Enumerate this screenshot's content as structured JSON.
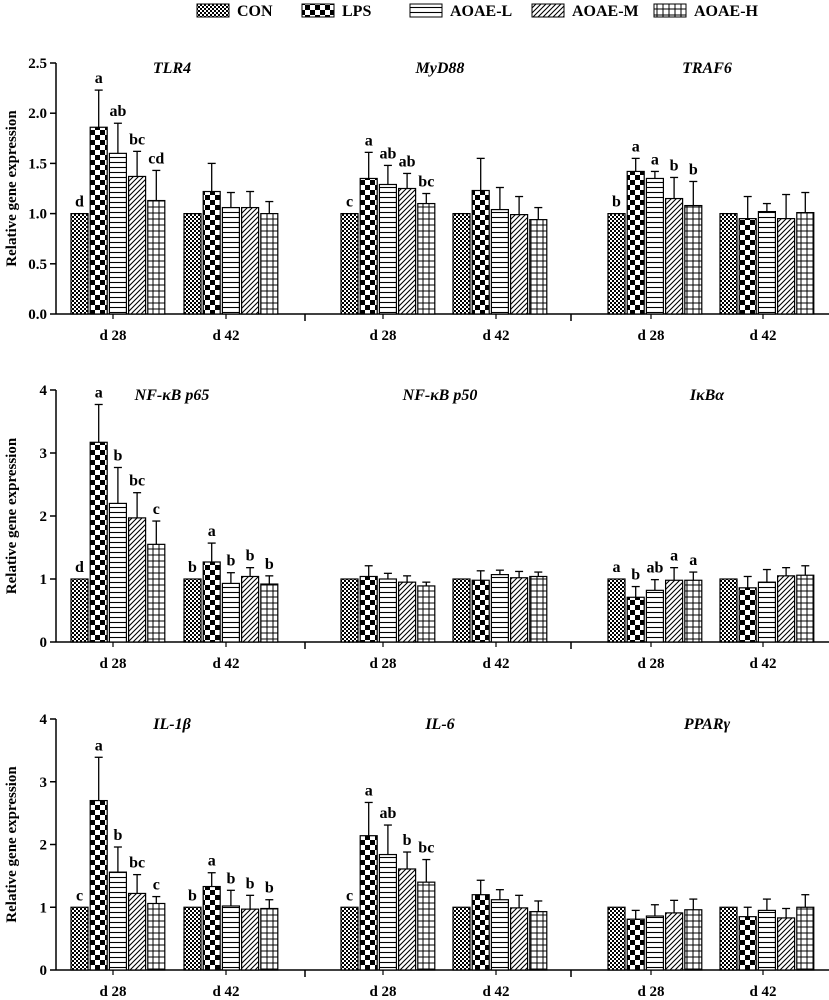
{
  "chart_data": {
    "type": "bar",
    "ylabel": "Relative gene expression",
    "series_names": [
      "CON",
      "LPS",
      "AOAE-L",
      "AOAE-M",
      "AOAE-H"
    ],
    "group_labels": [
      "d 28",
      "d 42"
    ],
    "panels": [
      {
        "ylim": [
          0,
          2.5
        ],
        "yticks": [
          "0.0",
          "0.5",
          "1.0",
          "1.5",
          "2.0",
          "2.5"
        ],
        "genes": [
          {
            "title": "TLR4",
            "d28": {
              "values": [
                1.0,
                1.86,
                1.6,
                1.37,
                1.13
              ],
              "errors": [
                0,
                0.37,
                0.3,
                0.25,
                0.3
              ],
              "letters": [
                "d",
                "a",
                "ab",
                "bc",
                "cd"
              ]
            },
            "d42": {
              "values": [
                1.0,
                1.22,
                1.06,
                1.06,
                1.0
              ],
              "errors": [
                0,
                0.28,
                0.15,
                0.16,
                0.12
              ],
              "letters": [
                "",
                "",
                "",
                "",
                ""
              ]
            }
          },
          {
            "title": "MyD88",
            "d28": {
              "values": [
                1.0,
                1.35,
                1.29,
                1.25,
                1.1
              ],
              "errors": [
                0,
                0.26,
                0.19,
                0.15,
                0.1
              ],
              "letters": [
                "c",
                "a",
                "ab",
                "ab",
                "bc"
              ]
            },
            "d42": {
              "values": [
                1.0,
                1.23,
                1.04,
                0.99,
                0.94
              ],
              "errors": [
                0,
                0.32,
                0.22,
                0.18,
                0.12
              ],
              "letters": [
                "",
                "",
                "",
                "",
                ""
              ]
            }
          },
          {
            "title": "TRAF6",
            "d28": {
              "values": [
                1.0,
                1.42,
                1.35,
                1.15,
                1.08
              ],
              "errors": [
                0,
                0.13,
                0.07,
                0.21,
                0.24
              ],
              "letters": [
                "b",
                "a",
                "a",
                "b",
                "b"
              ]
            },
            "d42": {
              "values": [
                1.0,
                0.95,
                1.02,
                0.95,
                1.01
              ],
              "errors": [
                0,
                0.22,
                0.08,
                0.24,
                0.2
              ],
              "letters": [
                "",
                "",
                "",
                "",
                ""
              ]
            }
          }
        ]
      },
      {
        "ylim": [
          0,
          4
        ],
        "yticks": [
          "0",
          "1",
          "2",
          "3",
          "4"
        ],
        "genes": [
          {
            "title": "NF-κB p65",
            "d28": {
              "values": [
                1.0,
                3.17,
                2.2,
                1.97,
                1.55
              ],
              "errors": [
                0,
                0.6,
                0.57,
                0.4,
                0.37
              ],
              "letters": [
                "d",
                "a",
                "b",
                "bc",
                "c"
              ]
            },
            "d42": {
              "values": [
                1.0,
                1.27,
                0.93,
                1.04,
                0.92
              ],
              "errors": [
                0,
                0.3,
                0.17,
                0.14,
                0.13
              ],
              "letters": [
                "b",
                "a",
                "b",
                "b",
                "b"
              ]
            }
          },
          {
            "title": "NF-κB p50",
            "d28": {
              "values": [
                1.0,
                1.04,
                1.0,
                0.95,
                0.89
              ],
              "errors": [
                0,
                0.17,
                0.09,
                0.1,
                0.06
              ],
              "letters": [
                "",
                "",
                "",
                "",
                ""
              ]
            },
            "d42": {
              "values": [
                1.0,
                0.98,
                1.07,
                1.02,
                1.04
              ],
              "errors": [
                0,
                0.15,
                0.07,
                0.1,
                0.07
              ],
              "letters": [
                "",
                "",
                "",
                "",
                ""
              ]
            }
          },
          {
            "title": "IκBα",
            "d28": {
              "values": [
                1.0,
                0.71,
                0.82,
                0.98,
                0.98
              ],
              "errors": [
                0,
                0.17,
                0.17,
                0.2,
                0.13
              ],
              "letters": [
                "a",
                "b",
                "ab",
                "a",
                "a"
              ]
            },
            "d42": {
              "values": [
                1.0,
                0.86,
                0.95,
                1.05,
                1.06
              ],
              "errors": [
                0,
                0.18,
                0.2,
                0.13,
                0.15
              ],
              "letters": [
                "",
                "",
                "",
                "",
                ""
              ]
            }
          }
        ]
      },
      {
        "ylim": [
          0,
          4
        ],
        "yticks": [
          "0",
          "1",
          "2",
          "3",
          "4"
        ],
        "genes": [
          {
            "title": "IL-1β",
            "d28": {
              "values": [
                1.0,
                2.7,
                1.56,
                1.22,
                1.06
              ],
              "errors": [
                0,
                0.69,
                0.4,
                0.3,
                0.11
              ],
              "letters": [
                "c",
                "a",
                "b",
                "bc",
                "c"
              ]
            },
            "d42": {
              "values": [
                1.0,
                1.33,
                1.02,
                0.97,
                0.98
              ],
              "errors": [
                0,
                0.22,
                0.25,
                0.22,
                0.14
              ],
              "letters": [
                "b",
                "a",
                "b",
                "b",
                "b"
              ]
            }
          },
          {
            "title": "IL-6",
            "d28": {
              "values": [
                1.0,
                2.14,
                1.84,
                1.61,
                1.4
              ],
              "errors": [
                0,
                0.53,
                0.47,
                0.27,
                0.36
              ],
              "letters": [
                "c",
                "a",
                "ab",
                "b",
                "bc"
              ]
            },
            "d42": {
              "values": [
                1.0,
                1.2,
                1.12,
                0.99,
                0.93
              ],
              "errors": [
                0,
                0.23,
                0.16,
                0.2,
                0.17
              ],
              "letters": [
                "",
                "",
                "",
                "",
                ""
              ]
            }
          },
          {
            "title": "PPARγ",
            "d28": {
              "values": [
                1.0,
                0.81,
                0.86,
                0.91,
                0.96
              ],
              "errors": [
                0,
                0.14,
                0.18,
                0.2,
                0.17
              ],
              "letters": [
                "",
                "",
                "",
                "",
                ""
              ]
            },
            "d42": {
              "values": [
                1.0,
                0.85,
                0.95,
                0.83,
                1.0
              ],
              "errors": [
                0,
                0.15,
                0.18,
                0.15,
                0.2
              ],
              "letters": [
                "",
                "",
                "",
                "",
                ""
              ]
            }
          }
        ]
      }
    ]
  }
}
